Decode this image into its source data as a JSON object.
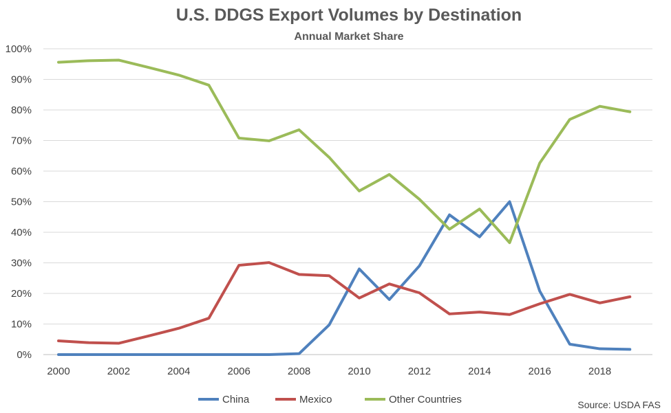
{
  "chart_data": {
    "type": "line",
    "title": "U.S. DDGS Export Volumes by Destination",
    "subtitle": "Annual Market Share",
    "x": [
      2000,
      2001,
      2002,
      2003,
      2004,
      2005,
      2006,
      2007,
      2008,
      2009,
      2010,
      2011,
      2012,
      2013,
      2014,
      2015,
      2016,
      2017,
      2018,
      2019
    ],
    "x_ticks": [
      "2000",
      "2002",
      "2004",
      "2006",
      "2008",
      "2010",
      "2012",
      "2014",
      "2016",
      "2018"
    ],
    "y_ticks": [
      "0%",
      "10%",
      "20%",
      "30%",
      "40%",
      "50%",
      "60%",
      "70%",
      "80%",
      "90%",
      "100%"
    ],
    "ylim": [
      0,
      100
    ],
    "xlim": [
      2000,
      2019
    ],
    "grid": true,
    "legend_position": "bottom",
    "series": [
      {
        "name": "China",
        "color": "#4f81bd",
        "values": [
          0,
          0,
          0,
          0,
          0,
          0,
          0,
          0,
          0.3,
          9.7,
          28.0,
          18.0,
          29.0,
          45.7,
          38.5,
          50.0,
          20.8,
          3.4,
          1.9,
          1.7
        ]
      },
      {
        "name": "Mexico",
        "color": "#c0504d",
        "values": [
          4.5,
          3.9,
          3.7,
          6.1,
          8.6,
          11.9,
          29.2,
          30.1,
          26.2,
          25.8,
          18.5,
          23.1,
          20.2,
          13.3,
          13.9,
          13.1,
          16.6,
          19.7,
          16.9,
          18.9
        ]
      },
      {
        "name": "Other Countries",
        "color": "#9bbb59",
        "values": [
          95.6,
          96.1,
          96.3,
          93.9,
          91.4,
          88.1,
          70.8,
          69.9,
          73.5,
          64.5,
          53.5,
          58.9,
          50.8,
          41.0,
          47.6,
          36.6,
          62.6,
          76.9,
          81.2,
          79.4
        ]
      }
    ],
    "source": "Source: USDA FAS"
  }
}
